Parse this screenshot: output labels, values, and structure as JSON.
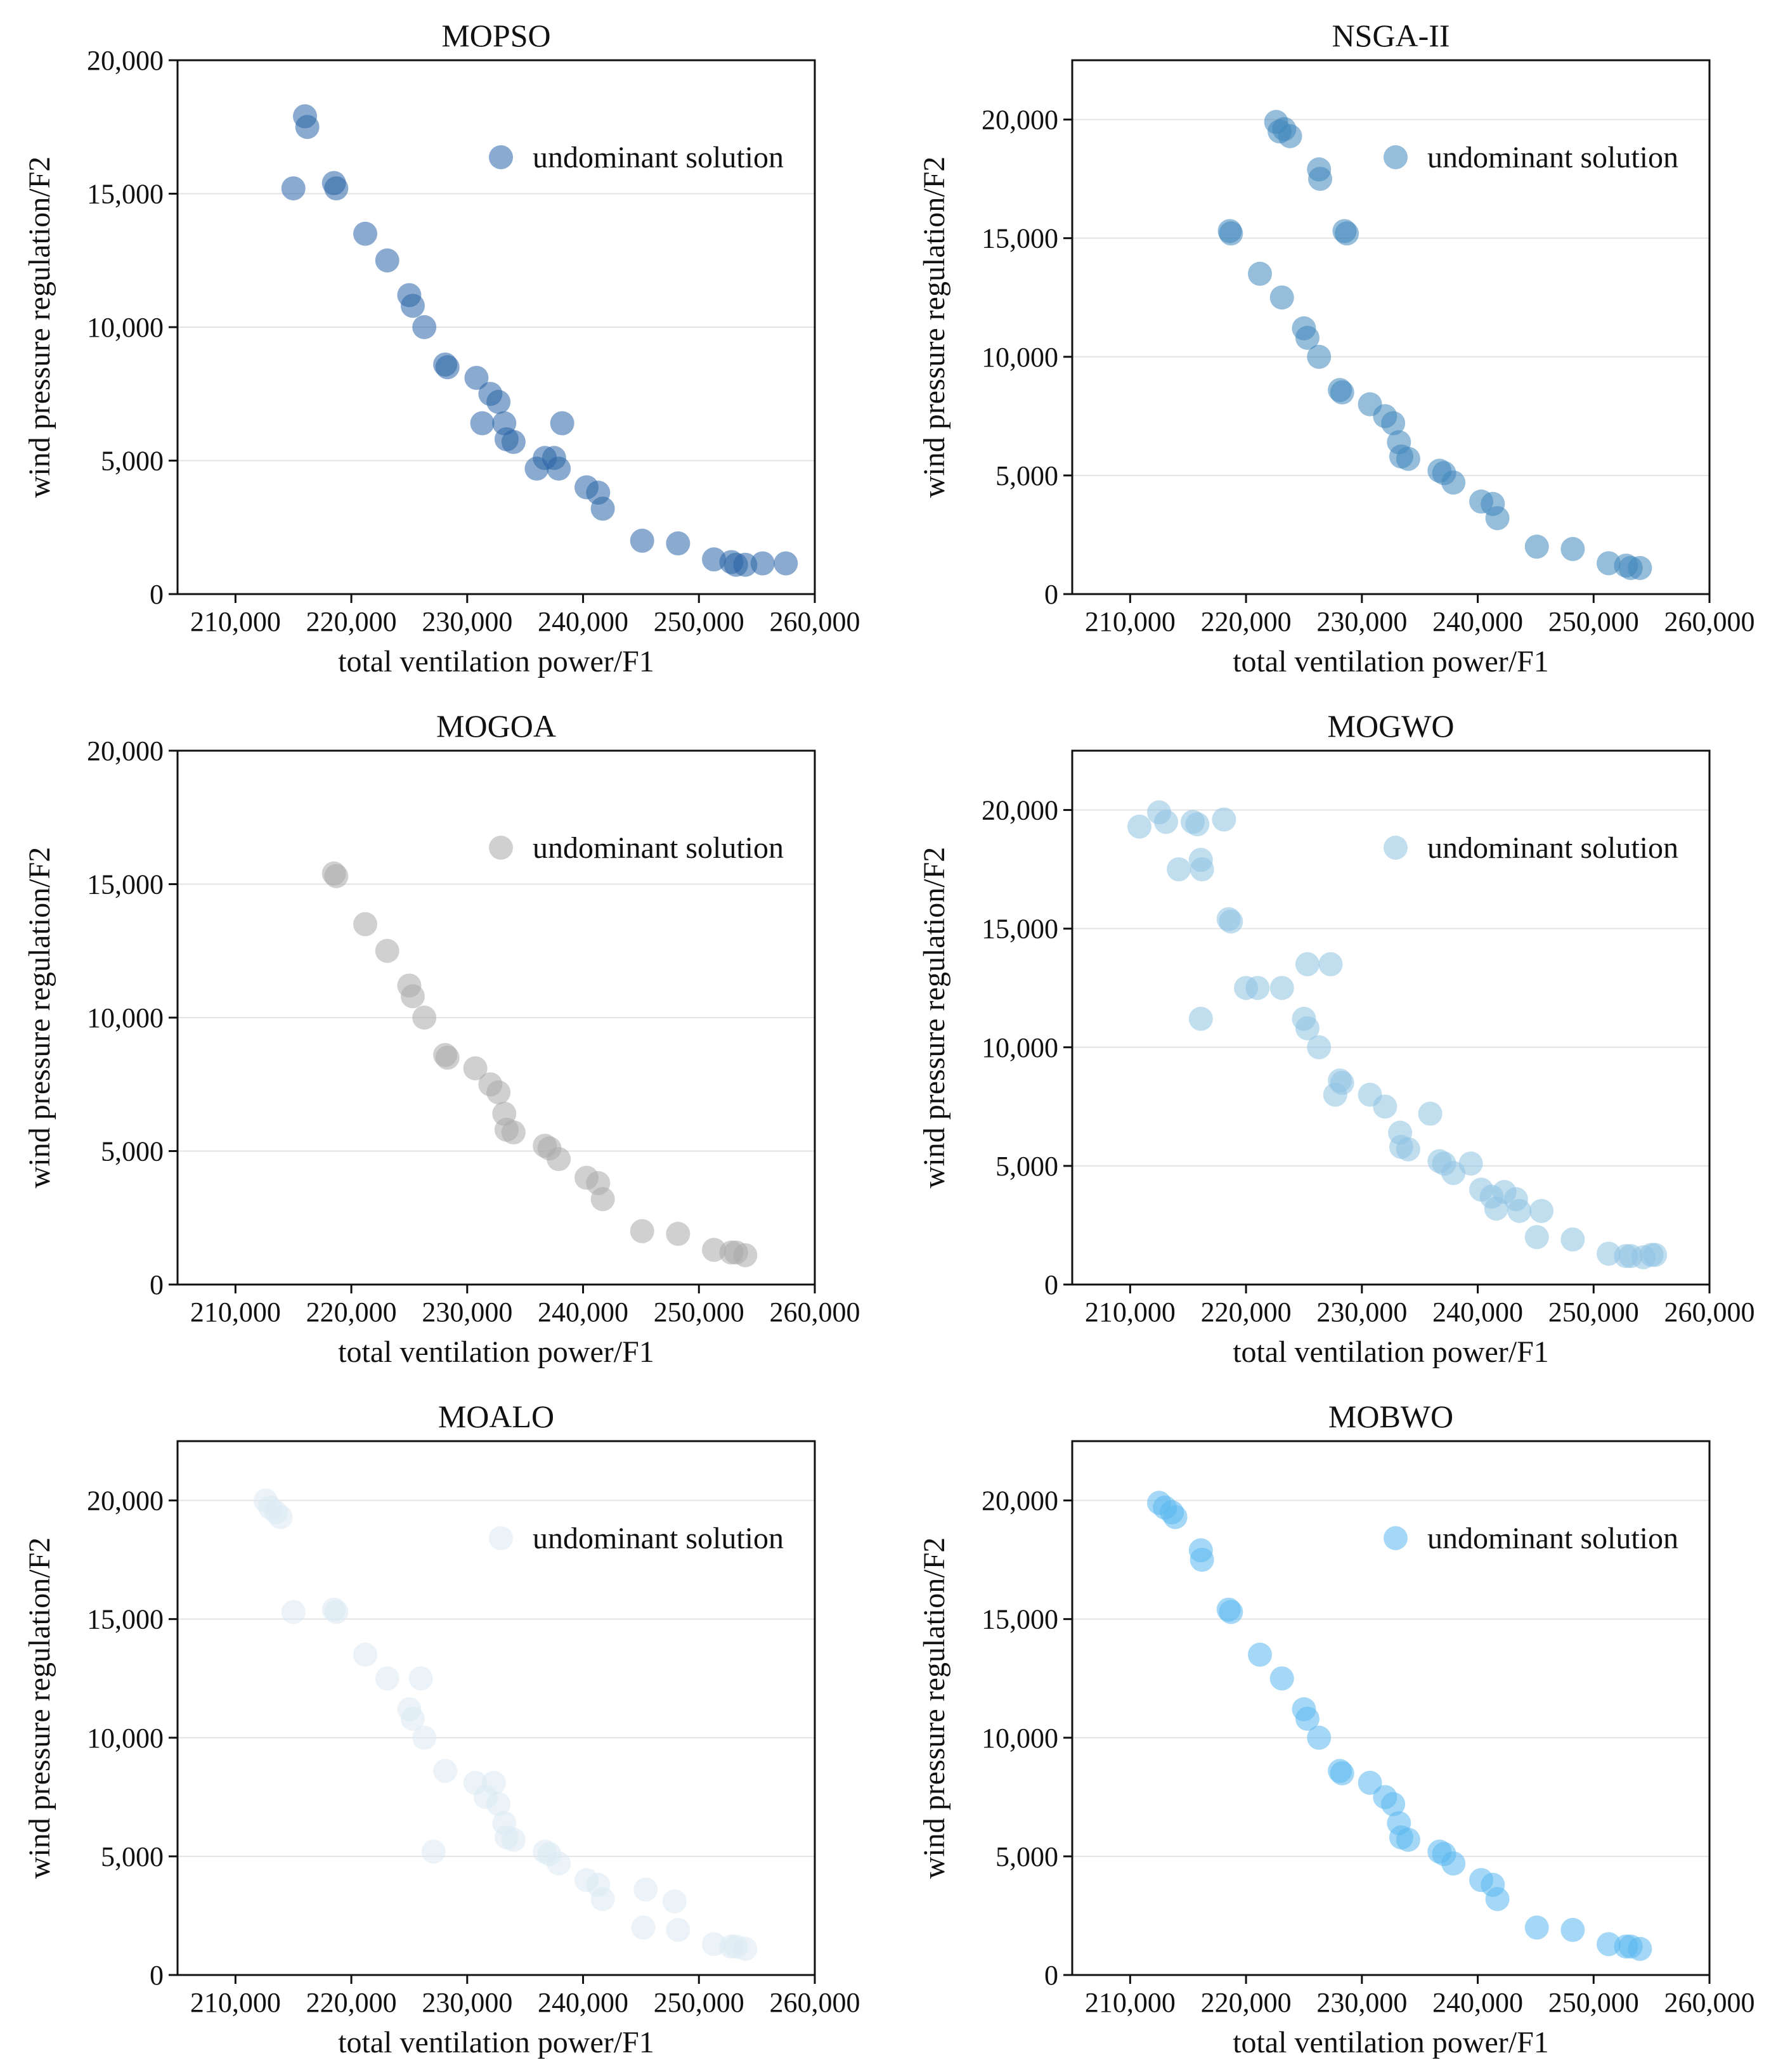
{
  "chart_data": [
    {
      "type": "scatter",
      "title": "MOPSO",
      "xlabel": "total ventilation power/F1",
      "ylabel": "wind pressure regulation/F2",
      "xlim": [
        205000,
        260000
      ],
      "ylim": [
        0,
        20000
      ],
      "xticks": [
        210000,
        220000,
        230000,
        240000,
        250000,
        260000
      ],
      "xtick_labels": [
        "210,000",
        "220,000",
        "230,000",
        "240,000",
        "250,000",
        "260,000"
      ],
      "yticks": [
        0,
        5000,
        10000,
        15000,
        20000
      ],
      "ytick_labels": [
        "0",
        "5,000",
        "10,000",
        "15,000",
        "20,000"
      ],
      "grid": true,
      "legend": {
        "label": "undominant solution",
        "position": "top-right"
      },
      "color": "#2a64a8",
      "series": [
        {
          "name": "undominant solution",
          "x": [
            215000,
            216000,
            216200,
            218500,
            218700,
            221200,
            223100,
            225000,
            225300,
            226300,
            228100,
            228300,
            230800,
            231300,
            232000,
            232700,
            233200,
            233400,
            234000,
            236000,
            236700,
            237500,
            237900,
            238200,
            240300,
            241300,
            241700,
            245100,
            248200,
            251300,
            252800,
            253200,
            254000,
            255500,
            257500
          ],
          "y": [
            15200,
            17900,
            17500,
            15400,
            15200,
            13500,
            12500,
            11200,
            10800,
            10000,
            8600,
            8500,
            8100,
            6400,
            7500,
            7200,
            6400,
            5800,
            5700,
            4700,
            5100,
            5100,
            4700,
            6400,
            4000,
            3800,
            3200,
            2000,
            1900,
            1300,
            1200,
            1100,
            1100,
            1150,
            1150
          ]
        }
      ]
    },
    {
      "type": "scatter",
      "title": "NSGA-II",
      "xlabel": "total ventilation power/F1",
      "ylabel": "wind pressure regulation/F2",
      "xlim": [
        205000,
        260000
      ],
      "ylim": [
        0,
        22500
      ],
      "xticks": [
        210000,
        220000,
        230000,
        240000,
        250000,
        260000
      ],
      "xtick_labels": [
        "210,000",
        "220,000",
        "230,000",
        "240,000",
        "250,000",
        "260,000"
      ],
      "yticks": [
        0,
        5000,
        10000,
        15000,
        20000
      ],
      "ytick_labels": [
        "0",
        "5,000",
        "10,000",
        "15,000",
        "20,000"
      ],
      "grid": true,
      "legend": {
        "label": "undominant solution",
        "position": "top-right"
      },
      "color": "#3f86bc",
      "series": [
        {
          "name": "undominant solution",
          "x": [
            222600,
            222900,
            223300,
            223800,
            226300,
            226400,
            228500,
            228700,
            218600,
            218700,
            221200,
            223100,
            225000,
            225300,
            226300,
            228100,
            228300,
            230700,
            232000,
            232700,
            233200,
            233400,
            234000,
            236700,
            237100,
            237900,
            240300,
            241300,
            241700,
            245100,
            248200,
            251300,
            252800,
            253200,
            254000
          ],
          "y": [
            19900,
            19500,
            19600,
            19300,
            17900,
            17500,
            15300,
            15200,
            15300,
            15200,
            13500,
            12500,
            11200,
            10800,
            10000,
            8600,
            8500,
            8000,
            7500,
            7200,
            6400,
            5800,
            5700,
            5200,
            5100,
            4700,
            3900,
            3800,
            3200,
            2000,
            1900,
            1300,
            1200,
            1100,
            1100
          ]
        }
      ]
    },
    {
      "type": "scatter",
      "title": "MOGOA",
      "xlabel": "total ventilation power/F1",
      "ylabel": "wind pressure regulation/F2",
      "xlim": [
        205000,
        260000
      ],
      "ylim": [
        0,
        20000
      ],
      "xticks": [
        210000,
        220000,
        230000,
        240000,
        250000,
        260000
      ],
      "xtick_labels": [
        "210,000",
        "220,000",
        "230,000",
        "240,000",
        "250,000",
        "260,000"
      ],
      "yticks": [
        0,
        5000,
        10000,
        15000,
        20000
      ],
      "ytick_labels": [
        "0",
        "5,000",
        "10,000",
        "15,000",
        "20,000"
      ],
      "grid": true,
      "legend": {
        "label": "undominant solution",
        "position": "top-right"
      },
      "color": "#a9a9a9",
      "series": [
        {
          "name": "undominant solution",
          "x": [
            218500,
            218700,
            221200,
            223100,
            225000,
            225300,
            226300,
            228100,
            228300,
            230700,
            232000,
            232700,
            233200,
            233400,
            234000,
            236700,
            237100,
            237900,
            240300,
            241300,
            241700,
            245100,
            248200,
            251300,
            252800,
            253200,
            254000
          ],
          "y": [
            15400,
            15300,
            13500,
            12500,
            11200,
            10800,
            10000,
            8600,
            8500,
            8100,
            7500,
            7200,
            6400,
            5800,
            5700,
            5200,
            5100,
            4700,
            4000,
            3800,
            3200,
            2000,
            1900,
            1300,
            1200,
            1200,
            1100
          ]
        }
      ]
    },
    {
      "type": "scatter",
      "title": "MOGWO",
      "xlabel": "total ventilation power/F1",
      "ylabel": "wind pressure regulation/F2",
      "xlim": [
        205000,
        260000
      ],
      "ylim": [
        0,
        22500
      ],
      "xticks": [
        210000,
        220000,
        230000,
        240000,
        250000,
        260000
      ],
      "xtick_labels": [
        "210,000",
        "220,000",
        "230,000",
        "240,000",
        "250,000",
        "260,000"
      ],
      "yticks": [
        0,
        5000,
        10000,
        15000,
        20000
      ],
      "ytick_labels": [
        "0",
        "5,000",
        "10,000",
        "15,000",
        "20,000"
      ],
      "grid": true,
      "legend": {
        "label": "undominant solution",
        "position": "top-right"
      },
      "color": "#8ec3e1",
      "series": [
        {
          "name": "undominant solution",
          "x": [
            210800,
            212500,
            213100,
            214200,
            215400,
            215800,
            216100,
            216200,
            218100,
            218500,
            218700,
            220000,
            221000,
            223100,
            225000,
            225300,
            225300,
            226300,
            227300,
            227700,
            228100,
            228300,
            230700,
            232000,
            233300,
            233400,
            234000,
            235900,
            236700,
            237100,
            237900,
            239400,
            240300,
            241200,
            241600,
            242300,
            243300,
            243600,
            245100,
            245500,
            248200,
            251300,
            252800,
            253200,
            254300,
            255000,
            255300,
            216100
          ],
          "y": [
            19300,
            19900,
            19500,
            17500,
            19500,
            19400,
            17900,
            17500,
            19600,
            15400,
            15300,
            12500,
            12500,
            12500,
            11200,
            10800,
            13500,
            10000,
            13500,
            8000,
            8600,
            8500,
            8000,
            7500,
            6400,
            5800,
            5700,
            7200,
            5200,
            5100,
            4700,
            5100,
            4000,
            3700,
            3200,
            3900,
            3600,
            3100,
            2000,
            3100,
            1900,
            1300,
            1200,
            1200,
            1150,
            1250,
            1250,
            11200
          ]
        }
      ]
    },
    {
      "type": "scatter",
      "title": "MOALO",
      "xlabel": "total ventilation power/F1",
      "ylabel": "wind pressure regulation/F2",
      "xlim": [
        205000,
        260000
      ],
      "ylim": [
        0,
        22500
      ],
      "xticks": [
        210000,
        220000,
        230000,
        240000,
        250000,
        260000
      ],
      "xtick_labels": [
        "210,000",
        "220,000",
        "230,000",
        "240,000",
        "250,000",
        "260,000"
      ],
      "yticks": [
        0,
        5000,
        10000,
        15000,
        20000
      ],
      "ytick_labels": [
        "0",
        "5,000",
        "10,000",
        "15,000",
        "20,000"
      ],
      "grid": true,
      "legend": {
        "label": "undominant solution",
        "position": "top-right"
      },
      "color": "#dbe9f2",
      "series": [
        {
          "name": "undominant solution",
          "x": [
            212600,
            213000,
            213500,
            213900,
            215000,
            218500,
            218700,
            221200,
            223100,
            225000,
            225300,
            226000,
            226300,
            227100,
            228100,
            230700,
            231600,
            232300,
            232700,
            233200,
            233400,
            234000,
            236700,
            237100,
            237900,
            240300,
            241300,
            241700,
            245200,
            245400,
            247900,
            248200,
            251300,
            252800,
            253200,
            254000
          ],
          "y": [
            20000,
            19700,
            19500,
            19300,
            15300,
            15400,
            15300,
            13500,
            12500,
            11200,
            10800,
            12500,
            10000,
            5200,
            8600,
            8100,
            7500,
            8100,
            7200,
            6400,
            5800,
            5700,
            5200,
            5100,
            4700,
            4000,
            3800,
            3200,
            2000,
            3600,
            3100,
            1900,
            1300,
            1200,
            1200,
            1100
          ]
        }
      ]
    },
    {
      "type": "scatter",
      "title": "MOBWO",
      "xlabel": "total ventilation power/F1",
      "ylabel": "wind pressure regulation/F2",
      "xlim": [
        205000,
        260000
      ],
      "ylim": [
        0,
        22500
      ],
      "xticks": [
        210000,
        220000,
        230000,
        240000,
        250000,
        260000
      ],
      "xtick_labels": [
        "210,000",
        "220,000",
        "230,000",
        "240,000",
        "250,000",
        "260,000"
      ],
      "yticks": [
        0,
        5000,
        10000,
        15000,
        20000
      ],
      "ytick_labels": [
        "0",
        "5,000",
        "10,000",
        "15,000",
        "20,000"
      ],
      "grid": true,
      "legend": {
        "label": "undominant solution",
        "position": "top-right"
      },
      "color": "#5ab8ee",
      "series": [
        {
          "name": "undominant solution",
          "x": [
            212500,
            213000,
            213600,
            213900,
            216100,
            216200,
            218500,
            218700,
            221200,
            223100,
            225000,
            225300,
            226300,
            228100,
            228300,
            230700,
            232000,
            232700,
            233200,
            233400,
            234000,
            236700,
            237100,
            237900,
            240300,
            241300,
            241700,
            245100,
            248200,
            251300,
            252800,
            253200,
            254000
          ],
          "y": [
            19900,
            19700,
            19500,
            19300,
            17900,
            17500,
            15400,
            15300,
            13500,
            12500,
            11200,
            10800,
            10000,
            8600,
            8500,
            8100,
            7500,
            7200,
            6400,
            5800,
            5700,
            5200,
            5100,
            4700,
            4000,
            3800,
            3200,
            2000,
            1900,
            1300,
            1200,
            1200,
            1100
          ]
        }
      ]
    }
  ]
}
